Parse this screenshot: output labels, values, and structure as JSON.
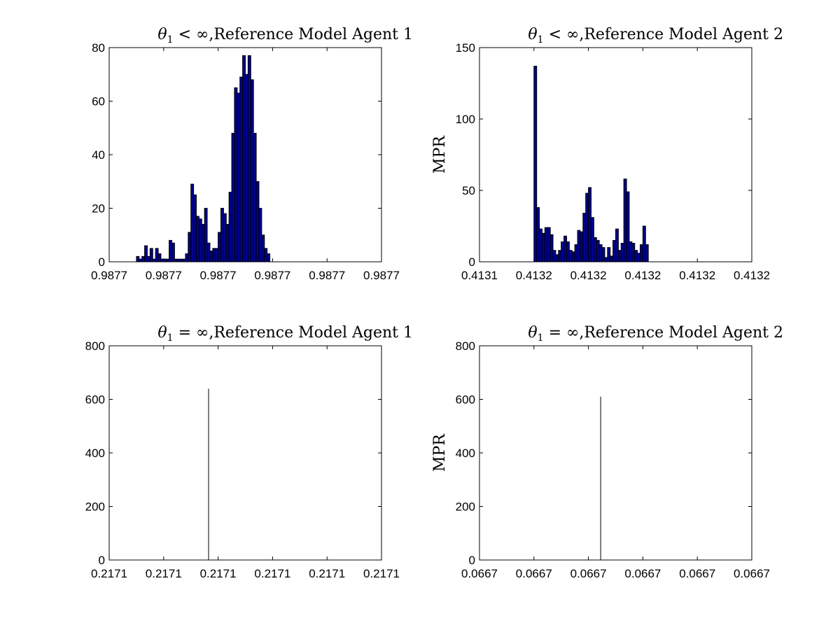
{
  "chart_data": [
    {
      "type": "bar",
      "title_prefix": "θ",
      "title_subscript": "1",
      "title_relation": " < ∞",
      "title_suffix": ",Reference Model Agent 1",
      "xlabel": "",
      "ylabel": "",
      "xtick_labels": [
        "0.9877",
        "0.9877",
        "0.9877",
        "0.9877",
        "0.9877",
        "0.9877"
      ],
      "ytick_labels": [
        "0",
        "20",
        "40",
        "60",
        "80"
      ],
      "ylim": [
        0,
        80
      ],
      "xlim": [
        0,
        100
      ],
      "bar_start": 10,
      "bar_width": 1,
      "values": [
        2,
        1,
        2,
        6,
        2,
        5,
        1,
        5,
        3,
        1,
        1,
        1,
        8,
        7,
        1,
        1,
        1,
        1,
        3,
        11,
        29,
        25,
        17,
        16,
        14,
        20,
        7,
        4,
        5,
        5,
        11,
        20,
        18,
        14,
        26,
        48,
        65,
        63,
        69,
        77,
        70,
        77,
        68,
        48,
        30,
        20,
        10,
        5,
        3
      ],
      "grid": false,
      "legend": "none"
    },
    {
      "type": "bar",
      "title_prefix": "θ",
      "title_subscript": "1",
      "title_relation": " < ∞",
      "title_suffix": ",Reference Model Agent 2",
      "xlabel": "",
      "ylabel": "MPR",
      "xtick_labels": [
        "0.4131",
        "0.4132",
        "0.4132",
        "0.4132",
        "0.4132",
        "0.4132"
      ],
      "ytick_labels": [
        "0",
        "50",
        "100",
        "150"
      ],
      "ylim": [
        0,
        150
      ],
      "xlim": [
        0,
        100
      ],
      "bar_start": 20,
      "bar_width": 1,
      "values": [
        137,
        38,
        23,
        20,
        24,
        24,
        19,
        8,
        5,
        8,
        14,
        18,
        14,
        8,
        7,
        12,
        22,
        21,
        34,
        48,
        52,
        31,
        17,
        15,
        12,
        10,
        3,
        10,
        4,
        15,
        23,
        8,
        13,
        58,
        49,
        14,
        13,
        8,
        6,
        12,
        25,
        12
      ],
      "grid": false,
      "legend": "none"
    },
    {
      "type": "bar",
      "title_prefix": "θ",
      "title_subscript": "1",
      "title_relation": " = ∞",
      "title_suffix": ",Reference Model Agent 1",
      "xlabel": "",
      "ylabel": "",
      "xtick_labels": [
        "0.2171",
        "0.2171",
        "0.2171",
        "0.2171",
        "0.2171",
        "0.2171"
      ],
      "ytick_labels": [
        "0",
        "200",
        "400",
        "600",
        "800"
      ],
      "ylim": [
        0,
        800
      ],
      "xlim": [
        0,
        100
      ],
      "spike_x": 36.5,
      "values": [
        640
      ],
      "grid": false,
      "legend": "none"
    },
    {
      "type": "bar",
      "title_prefix": "θ",
      "title_subscript": "1",
      "title_relation": " = ∞",
      "title_suffix": ",Reference Model Agent 2",
      "xlabel": "",
      "ylabel": "MPR",
      "xtick_labels": [
        "0.0667",
        "0.0667",
        "0.0667",
        "0.0667",
        "0.0667",
        "0.0667"
      ],
      "ytick_labels": [
        "0",
        "200",
        "400",
        "600",
        "800"
      ],
      "ylim": [
        0,
        800
      ],
      "xlim": [
        0,
        100
      ],
      "spike_x": 44.5,
      "values": [
        610
      ],
      "grid": false,
      "legend": "none"
    }
  ]
}
